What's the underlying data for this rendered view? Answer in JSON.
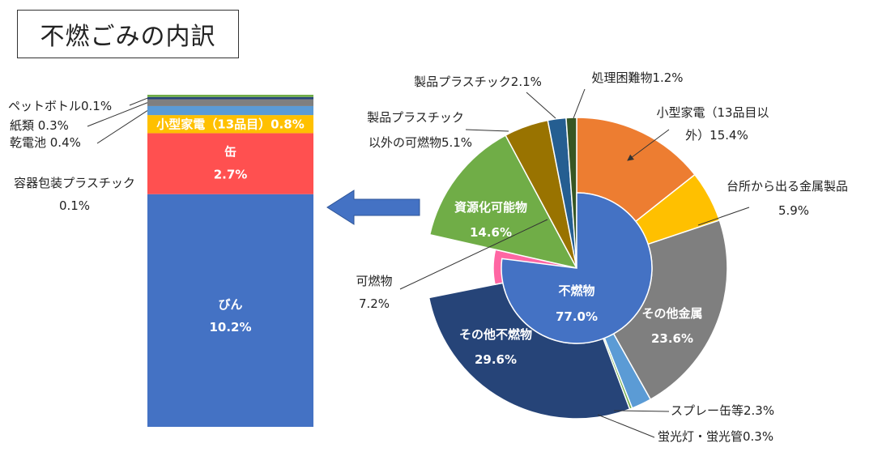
{
  "title": "不燃ごみの内訳",
  "chart_data": [
    {
      "type": "pie",
      "inner": {
        "label": "不燃物",
        "value_text": "77.0%",
        "value": 77.0
      },
      "outer": [
        {
          "name": "小型家電（13品目以外）",
          "line1": "小型家電（13品目以",
          "line2": "外）15.4%",
          "value": 15.4,
          "color": "#ED7D31"
        },
        {
          "name": "台所から出る金属製品",
          "line1": "台所から出る金属製品",
          "line2": "5.9%",
          "value": 5.9,
          "color": "#FFC000"
        },
        {
          "name": "その他金属",
          "line1": "その他金属",
          "line2": "23.6%",
          "value": 23.6,
          "color": "#7F7F7F"
        },
        {
          "name": "スプレー缶等",
          "line1": "スプレー缶等2.3%",
          "value": 2.3,
          "color": "#5B9BD5"
        },
        {
          "name": "蛍光灯・蛍光管",
          "line1": "蛍光灯・蛍光管0.3%",
          "value": 0.3,
          "color": "#70AD47"
        },
        {
          "name": "その他不燃物",
          "line1": "その他不燃物",
          "line2": "29.6%",
          "value": 29.6,
          "color": "#264478"
        },
        {
          "name": "可燃物",
          "line1": "可燃物",
          "line2": "7.2%",
          "value": 7.2,
          "color": "#FF66A3"
        },
        {
          "name": "資源化可能物",
          "line1": "資源化可能物",
          "line2": "14.6%",
          "value": 14.6,
          "color": "#70AD47"
        },
        {
          "name": "製品プラスチック以外の可燃物",
          "line1": "製品プラスチック",
          "line2": "以外の可燃物5.1%",
          "value": 5.1,
          "color": "#997300"
        },
        {
          "name": "製品プラスチック",
          "line1": "製品プラスチック2.1%",
          "value": 2.1,
          "color": "#255E91"
        },
        {
          "name": "処理困難物",
          "line1": "処理困難物1.2%",
          "value": 1.2,
          "color": "#375623"
        }
      ]
    },
    {
      "type": "bar",
      "stacked": true,
      "segments": [
        {
          "name": "びん",
          "line1": "びん",
          "line2": "10.2%",
          "value": 10.2,
          "color": "#4472C4"
        },
        {
          "name": "容器包装プラスチック",
          "line1": "容器包装プラスチック",
          "line2": "0.1%",
          "value": 0.1,
          "color": "#4472C4"
        },
        {
          "name": "缶",
          "line1": "缶",
          "line2": "2.7%",
          "value": 2.7,
          "color": "#FF5050"
        },
        {
          "name": "小型家電（13品目）",
          "line1": "小型家電（13品目）0.8%",
          "value": 0.8,
          "color": "#FFC000"
        },
        {
          "name": "乾電池",
          "line1": "乾電池  0.4%",
          "value": 0.4,
          "color": "#5B9BD5"
        },
        {
          "name": "紙類",
          "line1": "紙類  0.3%",
          "value": 0.3,
          "color": "#7F7F7F"
        },
        {
          "name": "ペットボトル",
          "line1": "ペットボトル0.1%",
          "value": 0.1,
          "color": "#264478"
        },
        {
          "name": "",
          "value": 0.1,
          "color": "#70AD47"
        }
      ]
    }
  ]
}
